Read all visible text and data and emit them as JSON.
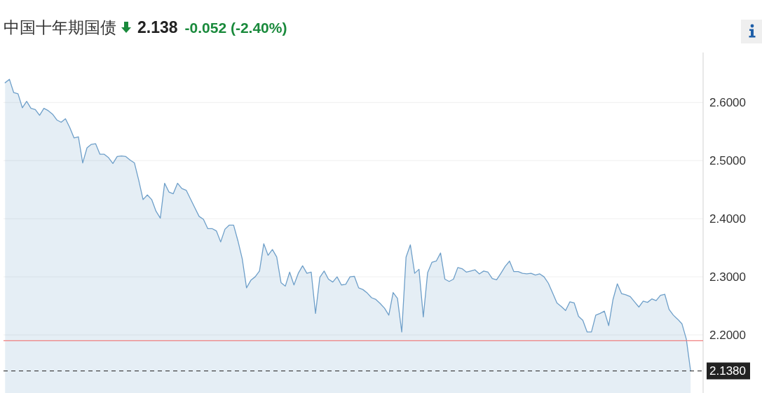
{
  "chart_data": {
    "type": "area",
    "title": "中国十年期国债",
    "annotations": [
      "2.138",
      "-0.052 (-2.40%)"
    ],
    "categories": [
      null,
      null,
      null,
      null,
      null,
      null,
      null,
      null,
      null,
      null,
      null,
      null,
      null,
      null,
      null,
      null,
      null,
      null,
      null,
      null,
      null,
      null,
      null,
      null,
      null,
      null,
      null,
      null,
      null,
      null,
      null,
      null,
      null,
      null,
      null,
      null,
      null,
      null,
      null,
      null,
      null,
      null,
      null,
      null,
      null,
      null,
      null,
      null,
      null,
      null,
      null,
      null,
      null,
      null,
      null,
      null,
      null,
      null,
      null,
      null,
      null,
      null,
      null,
      null,
      null,
      null,
      null,
      null,
      null,
      null,
      null,
      null,
      null,
      null,
      null,
      null,
      null,
      null,
      null,
      null,
      null,
      null,
      null,
      null,
      null,
      null,
      null,
      null,
      null,
      null,
      null,
      null,
      null,
      null,
      null,
      null,
      null,
      null,
      null,
      null,
      null,
      null,
      null,
      null,
      null,
      null,
      null,
      null,
      null,
      null,
      null,
      null,
      null,
      null,
      null,
      null,
      null,
      null,
      null,
      null,
      null,
      null,
      null,
      null,
      null,
      null,
      null,
      null,
      null,
      null,
      null,
      null,
      null,
      null,
      null,
      null,
      null,
      null,
      null,
      null,
      null,
      null,
      null,
      null,
      null,
      null,
      null,
      null,
      null,
      null,
      null,
      null,
      null,
      null,
      null,
      null,
      null,
      null,
      null,
      null
    ],
    "series": [
      {
        "color": "#6e9fc9",
        "values": [
          2.634,
          2.64,
          2.617,
          2.615,
          2.591,
          2.602,
          2.59,
          2.588,
          2.578,
          2.59,
          2.586,
          2.58,
          2.57,
          2.566,
          2.572,
          2.557,
          2.539,
          2.541,
          2.496,
          2.522,
          2.528,
          2.529,
          2.511,
          2.511,
          2.505,
          2.495,
          2.507,
          2.508,
          2.507,
          2.501,
          2.496,
          2.466,
          2.433,
          2.441,
          2.433,
          2.413,
          2.401,
          2.461,
          2.446,
          2.443,
          2.461,
          2.452,
          2.449,
          2.434,
          2.419,
          2.404,
          2.399,
          2.383,
          2.383,
          2.379,
          2.36,
          2.382,
          2.389,
          2.389,
          2.362,
          2.331,
          2.281,
          2.294,
          2.3,
          2.31,
          2.357,
          2.337,
          2.347,
          2.334,
          2.29,
          2.284,
          2.308,
          2.286,
          2.306,
          2.319,
          2.306,
          2.308,
          2.237,
          2.299,
          2.31,
          2.296,
          2.291,
          2.3,
          2.286,
          2.287,
          2.3,
          2.301,
          2.281,
          2.278,
          2.272,
          2.264,
          2.261,
          2.254,
          2.246,
          2.234,
          2.273,
          2.263,
          2.205,
          2.334,
          2.355,
          2.306,
          2.313,
          2.231,
          2.307,
          2.325,
          2.327,
          2.341,
          2.296,
          2.292,
          2.296,
          2.316,
          2.314,
          2.308,
          2.31,
          2.312,
          2.305,
          2.31,
          2.308,
          2.297,
          2.295,
          2.306,
          2.318,
          2.327,
          2.309,
          2.309,
          2.306,
          2.305,
          2.306,
          2.303,
          2.305,
          2.3,
          2.289,
          2.272,
          2.255,
          2.249,
          2.242,
          2.257,
          2.255,
          2.232,
          2.225,
          2.205,
          2.205,
          2.234,
          2.237,
          2.241,
          2.216,
          2.261,
          2.288,
          2.271,
          2.269,
          2.266,
          2.257,
          2.248,
          2.258,
          2.256,
          2.262,
          2.259,
          2.268,
          2.27,
          2.244,
          2.234,
          2.227,
          2.219,
          2.193,
          2.138
        ]
      }
    ],
    "ylim": [
      2.1,
      2.686
    ],
    "yticks": [
      {
        "value": 2.2,
        "label": "2.2000"
      },
      {
        "value": 2.3,
        "label": "2.3000"
      },
      {
        "value": 2.4,
        "label": "2.4000"
      },
      {
        "value": 2.5,
        "label": "2.5000"
      },
      {
        "value": 2.6,
        "label": "2.6000"
      }
    ],
    "grid": "y",
    "ref_lines": [
      {
        "axis": "y",
        "value": 2.19,
        "color": "#f08080"
      },
      {
        "axis": "y",
        "value": 2.138,
        "label": "2.1380",
        "color": "#222222",
        "line_style": "dashed"
      }
    ]
  }
}
